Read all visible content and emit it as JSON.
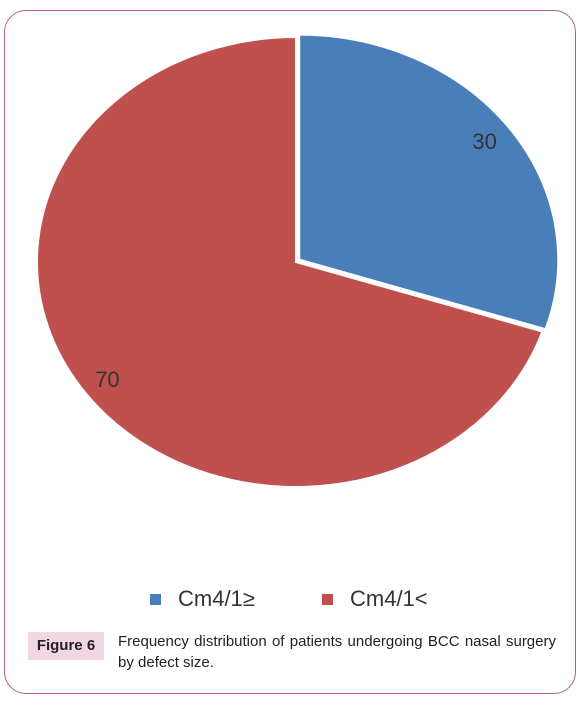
{
  "chart_data": {
    "type": "pie",
    "categories": [
      "Cm4/1≥",
      "Cm4/1<"
    ],
    "values": [
      30,
      70
    ],
    "colors": [
      "#4a7eb8",
      "#c0504d"
    ],
    "figure_label": "Figure 6",
    "caption": "Frequency distribution of patients undergoing BCC nasal surgery by defect size."
  }
}
